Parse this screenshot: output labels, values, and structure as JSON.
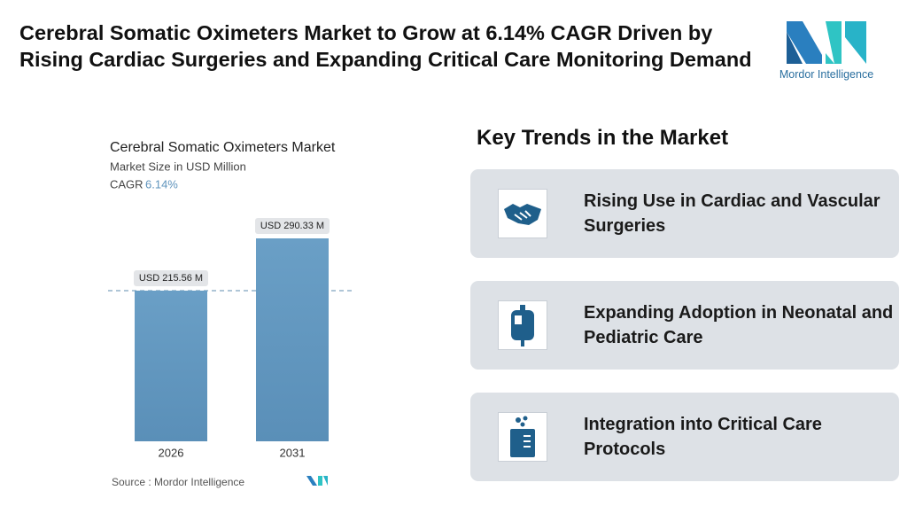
{
  "header": {
    "title": "Cerebral Somatic Oximeters Market to Grow at 6.14% CAGR Driven by Rising Cardiac Surgeries and Expanding Critical Care Monitoring Demand",
    "logo_text": "Mordor Intelligence"
  },
  "chart_data": {
    "type": "bar",
    "title": "Cerebral Somatic Oximeters Market",
    "subtitle": "Market Size in USD Million",
    "cagr_label": "CAGR",
    "cagr_value": "6.14%",
    "categories": [
      "2026",
      "2031"
    ],
    "values": [
      215.56,
      290.33
    ],
    "value_labels": [
      "USD 215.56 M",
      "USD 290.33 M"
    ],
    "color": "#5f94bd",
    "source": "Source : Mordor Intelligence"
  },
  "trends": {
    "title": "Key Trends in the Market",
    "items": [
      "Rising Use in Cardiac and Vascular Surgeries",
      "Expanding Adoption in Neonatal and Pediatric Care",
      "Integration into Critical Care Protocols"
    ]
  }
}
